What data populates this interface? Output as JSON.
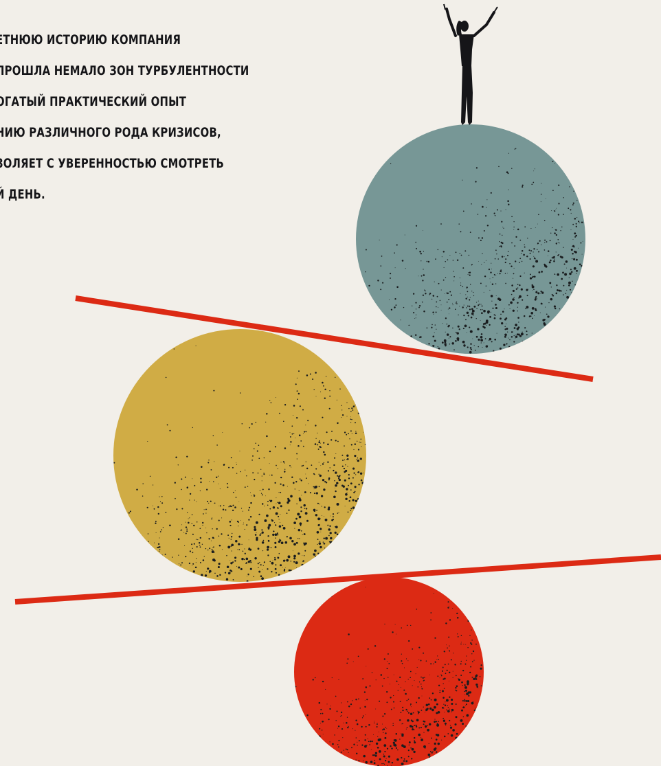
{
  "text": {
    "lines": [
      "ЕТНЮЮ ИСТОРИЮ КОМПАНИЯ",
      "ПРОШЛА НЕМАЛО ЗОН ТУРБУЛЕНТНОСТИ",
      "ОГАТЫЙ ПРАКТИЧЕСКИЙ ОПЫТ",
      "НИЮ РАЗЛИЧНОГО РОДА КРИЗИСОВ,",
      "ЗОЛЯЕТ С УВЕРЕННОСТЬЮ СМОТРЕТЬ",
      "Й ДЕНЬ."
    ]
  },
  "colors": {
    "background": "#f2efe9",
    "text": "#151518",
    "teal_ball": "#779796",
    "mustard_ball": "#d0ac45",
    "red_ball": "#dc2a14",
    "beam": "#dc2a14",
    "figure": "#151518",
    "speckle": "#1a1d1f"
  },
  "illustration": {
    "elements": [
      "teal-ball",
      "mustard-ball",
      "red-ball",
      "upper-beam",
      "lower-beam",
      "balancing-woman-figure"
    ]
  }
}
